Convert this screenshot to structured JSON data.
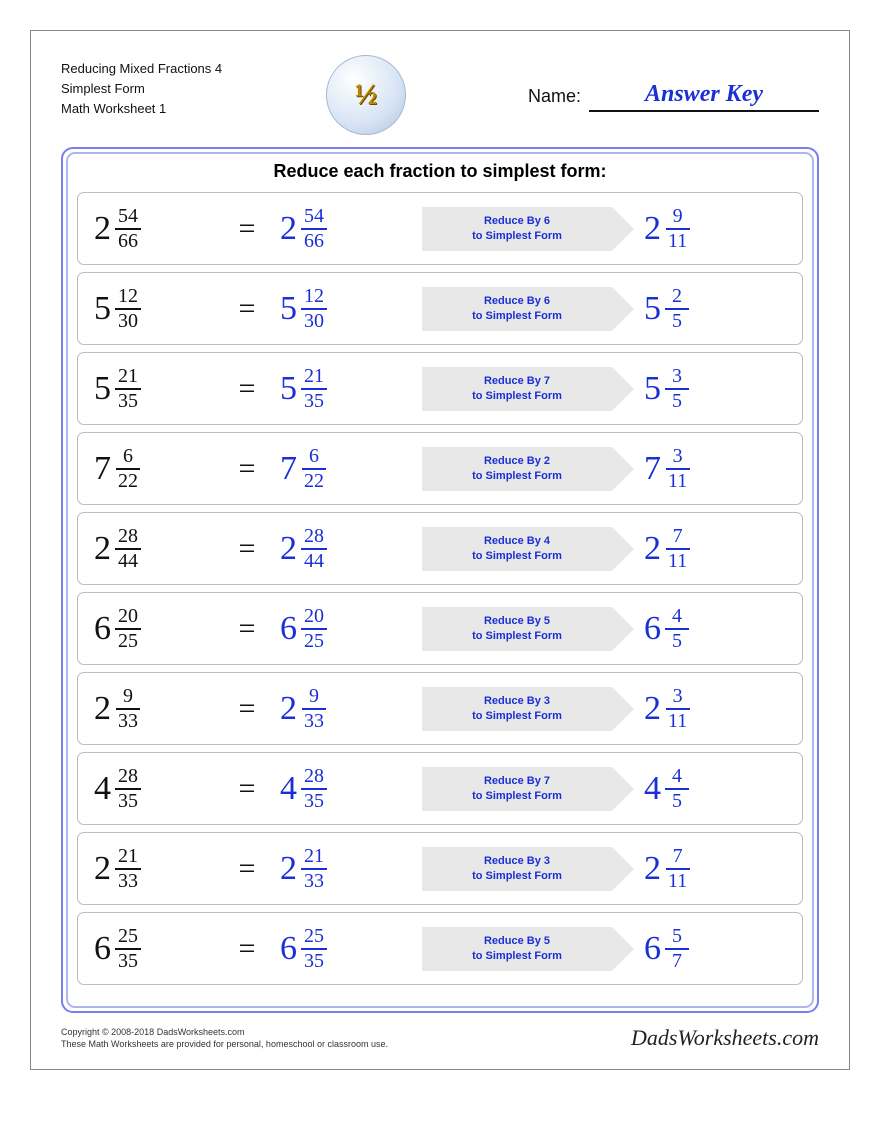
{
  "header": {
    "line1": "Reducing Mixed Fractions 4",
    "line2": "Simplest Form",
    "line3": "Math Worksheet 1",
    "badge_text": "½",
    "name_label": "Name:",
    "name_value": "Answer Key"
  },
  "colors": {
    "accent": "#1a2fd6",
    "arrow_bg": "#e8e8e8",
    "row_border": "#bcbcbc",
    "panel_outer": "#7a7ff0",
    "panel_inner": "#b0b3f5"
  },
  "panel": {
    "title": "Reduce each fraction to simplest form:",
    "problems": [
      {
        "whole": "2",
        "num": "54",
        "den": "66",
        "reduce_by": "6",
        "ans_whole": "2",
        "ans_num": "9",
        "ans_den": "11"
      },
      {
        "whole": "5",
        "num": "12",
        "den": "30",
        "reduce_by": "6",
        "ans_whole": "5",
        "ans_num": "2",
        "ans_den": "5"
      },
      {
        "whole": "5",
        "num": "21",
        "den": "35",
        "reduce_by": "7",
        "ans_whole": "5",
        "ans_num": "3",
        "ans_den": "5"
      },
      {
        "whole": "7",
        "num": "6",
        "den": "22",
        "reduce_by": "2",
        "ans_whole": "7",
        "ans_num": "3",
        "ans_den": "11"
      },
      {
        "whole": "2",
        "num": "28",
        "den": "44",
        "reduce_by": "4",
        "ans_whole": "2",
        "ans_num": "7",
        "ans_den": "11"
      },
      {
        "whole": "6",
        "num": "20",
        "den": "25",
        "reduce_by": "5",
        "ans_whole": "6",
        "ans_num": "4",
        "ans_den": "5"
      },
      {
        "whole": "2",
        "num": "9",
        "den": "33",
        "reduce_by": "3",
        "ans_whole": "2",
        "ans_num": "3",
        "ans_den": "11"
      },
      {
        "whole": "4",
        "num": "28",
        "den": "35",
        "reduce_by": "7",
        "ans_whole": "4",
        "ans_num": "4",
        "ans_den": "5"
      },
      {
        "whole": "2",
        "num": "21",
        "den": "33",
        "reduce_by": "3",
        "ans_whole": "2",
        "ans_num": "7",
        "ans_den": "11"
      },
      {
        "whole": "6",
        "num": "25",
        "den": "35",
        "reduce_by": "5",
        "ans_whole": "6",
        "ans_num": "5",
        "ans_den": "7"
      }
    ],
    "arrow_prefix": "Reduce By ",
    "arrow_line2": "to Simplest Form"
  },
  "footer": {
    "copyright": "Copyright © 2008-2018 DadsWorksheets.com",
    "tagline": "These Math Worksheets are provided for personal, homeschool or classroom use.",
    "brand": "DadsWorksheets.com"
  }
}
